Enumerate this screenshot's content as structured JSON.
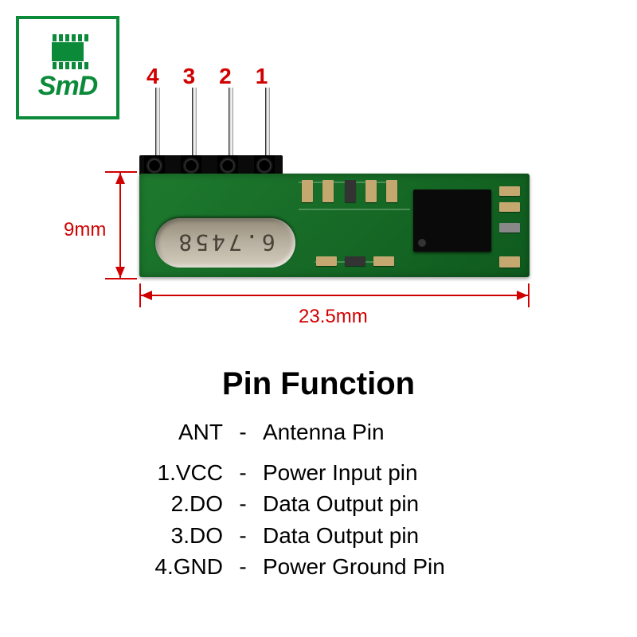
{
  "logo": {
    "text": "SmD",
    "border_color": "#0b8a3a",
    "chip_color": "#0b8a3a"
  },
  "pin_numbers": {
    "labels": [
      "4",
      "3",
      "2",
      "1"
    ],
    "color": "#d10000",
    "font_size": 28
  },
  "pcb": {
    "width_mm": "23.5mm",
    "height_mm": "9mm",
    "board_color": "#1e7a2e",
    "board_gradient_dark": "#0f5a1e",
    "crystal_color": "#b8b0a0",
    "crystal_text": "6.7458",
    "ic_color": "#0a0a0a"
  },
  "dimensions": {
    "arrow_color": "#d10000",
    "label_color": "#d10000"
  },
  "smd_components": {
    "color_tan": "#c4a870",
    "color_dark": "#333333",
    "color_gray": "#888888"
  },
  "pin_function": {
    "title": "Pin Function",
    "rows": [
      {
        "left": "ANT",
        "right": "Antenna Pin"
      },
      {
        "left": "1.VCC",
        "right": "Power Input pin"
      },
      {
        "left": "2.DO",
        "right": "Data Output pin"
      },
      {
        "left": "3.DO",
        "right": "Data Output pin"
      },
      {
        "left": "4.GND",
        "right": "Power Ground Pin"
      }
    ],
    "text_color": "#000000"
  }
}
